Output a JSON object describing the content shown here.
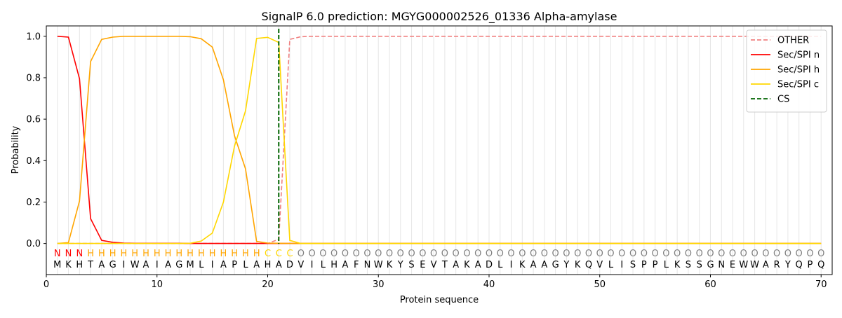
{
  "chart_data": {
    "type": "line",
    "title": "SignalP 6.0 prediction: MGYG000002526_01336 Alpha-amylase",
    "xlabel": "Protein sequence",
    "ylabel": "Probability",
    "xlim": [
      0,
      71
    ],
    "ylim": [
      -0.15,
      1.05
    ],
    "xticks": [
      0,
      10,
      20,
      30,
      40,
      50,
      60,
      70
    ],
    "yticks": [
      0.0,
      0.2,
      0.4,
      0.6,
      0.8,
      1.0
    ],
    "grid": "vertical lines at each residue",
    "legend_position": "top-right",
    "sequence": "MKHTAGIWAIAGMLIAPLAHADVILHAFNWKYSEVTAKADLIKAAGYKQVLISPPLKSSGNEWWARYQPQ",
    "region_labels": "NNNHHHHHHHHHHHHHHHHCCCOOOOOOOOOOOOOOOOOOOOOOOOOOOOOOOOOOOOOOOOOOOOOOOOO",
    "region_colors": {
      "N": "#ff0000",
      "H": "#ffa500",
      "C": "#ffd700",
      "O": "#808080"
    },
    "series": [
      {
        "name": "OTHER",
        "color": "#f08080",
        "dash": "dashed",
        "values": [
          0,
          0,
          0,
          0,
          0,
          0,
          0,
          0,
          0,
          0,
          0,
          0,
          0,
          0,
          0,
          0,
          0,
          0,
          0,
          0,
          0.02,
          0.985,
          0.998,
          1,
          1,
          1,
          1,
          1,
          1,
          1,
          1,
          1,
          1,
          1,
          1,
          1,
          1,
          1,
          1,
          1,
          1,
          1,
          1,
          1,
          1,
          1,
          1,
          1,
          1,
          1,
          1,
          1,
          1,
          1,
          1,
          1,
          1,
          1,
          1,
          1,
          1,
          1,
          1,
          1,
          1,
          1,
          1,
          1,
          1,
          1
        ]
      },
      {
        "name": "Sec/SPI n",
        "color": "#ff0000",
        "dash": "solid",
        "values": [
          1.0,
          0.996,
          0.795,
          0.12,
          0.015,
          0.006,
          0.002,
          0.001,
          0.001,
          0.001,
          0.001,
          0.001,
          0,
          0,
          0,
          0,
          0,
          0,
          0,
          0,
          0,
          0,
          0,
          0,
          0,
          0,
          0,
          0,
          0,
          0,
          0,
          0,
          0,
          0,
          0,
          0,
          0,
          0,
          0,
          0,
          0,
          0,
          0,
          0,
          0,
          0,
          0,
          0,
          0,
          0,
          0,
          0,
          0,
          0,
          0,
          0,
          0,
          0,
          0,
          0,
          0,
          0,
          0,
          0,
          0,
          0,
          0,
          0,
          0,
          0
        ]
      },
      {
        "name": "Sec/SPI h",
        "color": "#ffa500",
        "dash": "solid",
        "values": [
          0,
          0.004,
          0.205,
          0.878,
          0.985,
          0.996,
          1.0,
          1.0,
          1.0,
          1.0,
          1.0,
          1.0,
          0.998,
          0.988,
          0.948,
          0.79,
          0.52,
          0.36,
          0.01,
          0.002,
          0.001,
          0,
          0,
          0,
          0,
          0,
          0,
          0,
          0,
          0,
          0,
          0,
          0,
          0,
          0,
          0,
          0,
          0,
          0,
          0,
          0,
          0,
          0,
          0,
          0,
          0,
          0,
          0,
          0,
          0,
          0,
          0,
          0,
          0,
          0,
          0,
          0,
          0,
          0,
          0,
          0,
          0,
          0,
          0,
          0,
          0,
          0,
          0,
          0,
          0
        ]
      },
      {
        "name": "Sec/SPI c",
        "color": "#ffd700",
        "dash": "solid",
        "values": [
          0,
          0,
          0,
          0,
          0,
          0,
          0,
          0,
          0,
          0,
          0,
          0,
          0.001,
          0.012,
          0.05,
          0.2,
          0.47,
          0.64,
          0.99,
          0.995,
          0.97,
          0.015,
          0,
          0,
          0,
          0,
          0,
          0,
          0,
          0,
          0,
          0,
          0,
          0,
          0,
          0,
          0,
          0,
          0,
          0,
          0,
          0,
          0,
          0,
          0,
          0,
          0,
          0,
          0,
          0,
          0,
          0,
          0,
          0,
          0,
          0,
          0,
          0,
          0,
          0,
          0,
          0,
          0,
          0,
          0,
          0,
          0,
          0,
          0,
          0
        ]
      }
    ],
    "cleavage_site": {
      "name": "CS",
      "x": 21,
      "color": "#006400",
      "dash": "dashed"
    }
  }
}
